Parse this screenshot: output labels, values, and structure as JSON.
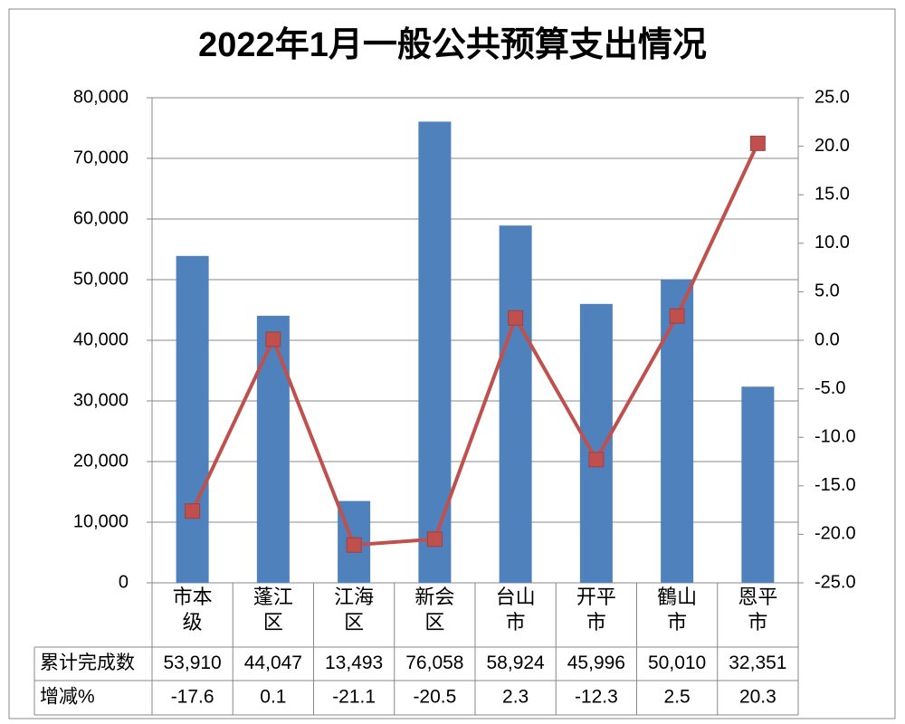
{
  "chart_data": {
    "type": "bar-line",
    "title": "2022年1月一般公共预算支出情况",
    "categories": [
      "市本级",
      "蓬江区",
      "江海区",
      "新会区",
      "台山市",
      "开平市",
      "鶴山市",
      "恩平市"
    ],
    "series": [
      {
        "name": "累计完成数",
        "type": "bar",
        "color": "#4f81bd",
        "values": [
          53910,
          44047,
          13493,
          76058,
          58924,
          45996,
          50010,
          32351
        ],
        "value_labels": [
          "53,910",
          "44,047",
          "13,493",
          "76,058",
          "58,924",
          "45,996",
          "50,010",
          "32,351"
        ]
      },
      {
        "name": "增减%",
        "type": "line",
        "axis": "y2",
        "color": "#c0504d",
        "values": [
          -17.6,
          0.1,
          -21.1,
          -20.5,
          2.3,
          -12.3,
          2.5,
          20.3
        ]
      }
    ],
    "ylim": [
      0,
      80000
    ],
    "yticks": [
      0,
      {
        "value": 10000,
        "label": "10,000"
      },
      {
        "value": 20000,
        "label": "20,000"
      },
      {
        "value": 30000,
        "label": "30,000"
      },
      {
        "value": 40000,
        "label": "40,000"
      },
      {
        "value": 50000,
        "label": "50,000"
      },
      {
        "value": 60000,
        "label": "60,000"
      },
      {
        "value": 70000,
        "label": "70,000"
      },
      {
        "value": 80000,
        "label": "80,000"
      }
    ],
    "y2lim": [
      -25,
      25
    ],
    "y2ticks": [
      {
        "value": -25,
        "label": "-25.0"
      },
      {
        "value": -20,
        "label": "-20.0"
      },
      {
        "value": -15,
        "label": "-15.0"
      },
      {
        "value": -10,
        "label": "-10.0"
      },
      {
        "value": -5,
        "label": "-5.0"
      },
      {
        "value": 0,
        "label": "0.0"
      },
      {
        "value": 5,
        "label": "5.0"
      },
      {
        "value": 10,
        "label": "10.0"
      },
      {
        "value": 15,
        "label": "15.0"
      },
      {
        "value": 20,
        "label": "20.0"
      },
      {
        "value": 25,
        "label": "25.0"
      }
    ],
    "grid": true
  }
}
